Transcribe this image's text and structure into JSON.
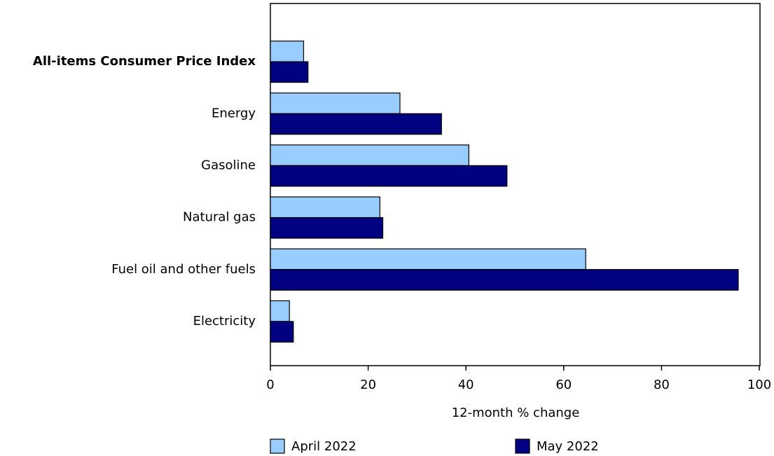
{
  "chart_data": {
    "type": "hbar",
    "categories": [
      "All-items Consumer Price Index",
      "Energy",
      "Gasoline",
      "Natural gas",
      "Fuel oil and other fuels",
      "Electricity"
    ],
    "series": [
      {
        "name": "April 2022",
        "color": "#99ccff",
        "values": [
          6.8,
          26.5,
          40.6,
          22.4,
          64.5,
          3.9
        ]
      },
      {
        "name": "May 2022",
        "color": "#000080",
        "values": [
          7.7,
          35.0,
          48.4,
          23.0,
          95.7,
          4.7
        ]
      }
    ],
    "xlim": [
      0,
      100
    ],
    "xticks": [
      0,
      20,
      40,
      60,
      80,
      100
    ],
    "xlabel": "12-month % change"
  }
}
